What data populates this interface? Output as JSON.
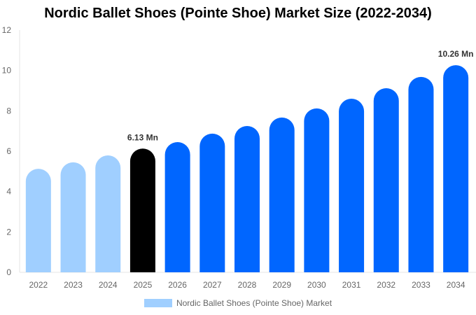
{
  "chart_data": {
    "type": "bar",
    "title": "Nordic Ballet Shoes (Pointe Shoe) Market Size (2022-2034)",
    "categories": [
      "2022",
      "2023",
      "2024",
      "2025",
      "2026",
      "2027",
      "2028",
      "2029",
      "2030",
      "2031",
      "2032",
      "2033",
      "2034"
    ],
    "series": [
      {
        "name": "Nordic Ballet Shoes (Pointe Shoe) Market",
        "values": [
          5.13,
          5.45,
          5.79,
          6.13,
          6.45,
          6.87,
          7.25,
          7.67,
          8.12,
          8.6,
          9.12,
          9.68,
          10.26
        ]
      }
    ],
    "data_labels": {
      "2025": "6.13 Mn",
      "2034": "10.26 Mn"
    },
    "ylim": [
      0,
      12
    ],
    "yticks": [
      0,
      2,
      4,
      6,
      8,
      10,
      12
    ],
    "grid": false,
    "legend_position": "bottom",
    "colors": {
      "historical": "#a0cfff",
      "current": "#000000",
      "forecast": "#0066ff"
    }
  }
}
